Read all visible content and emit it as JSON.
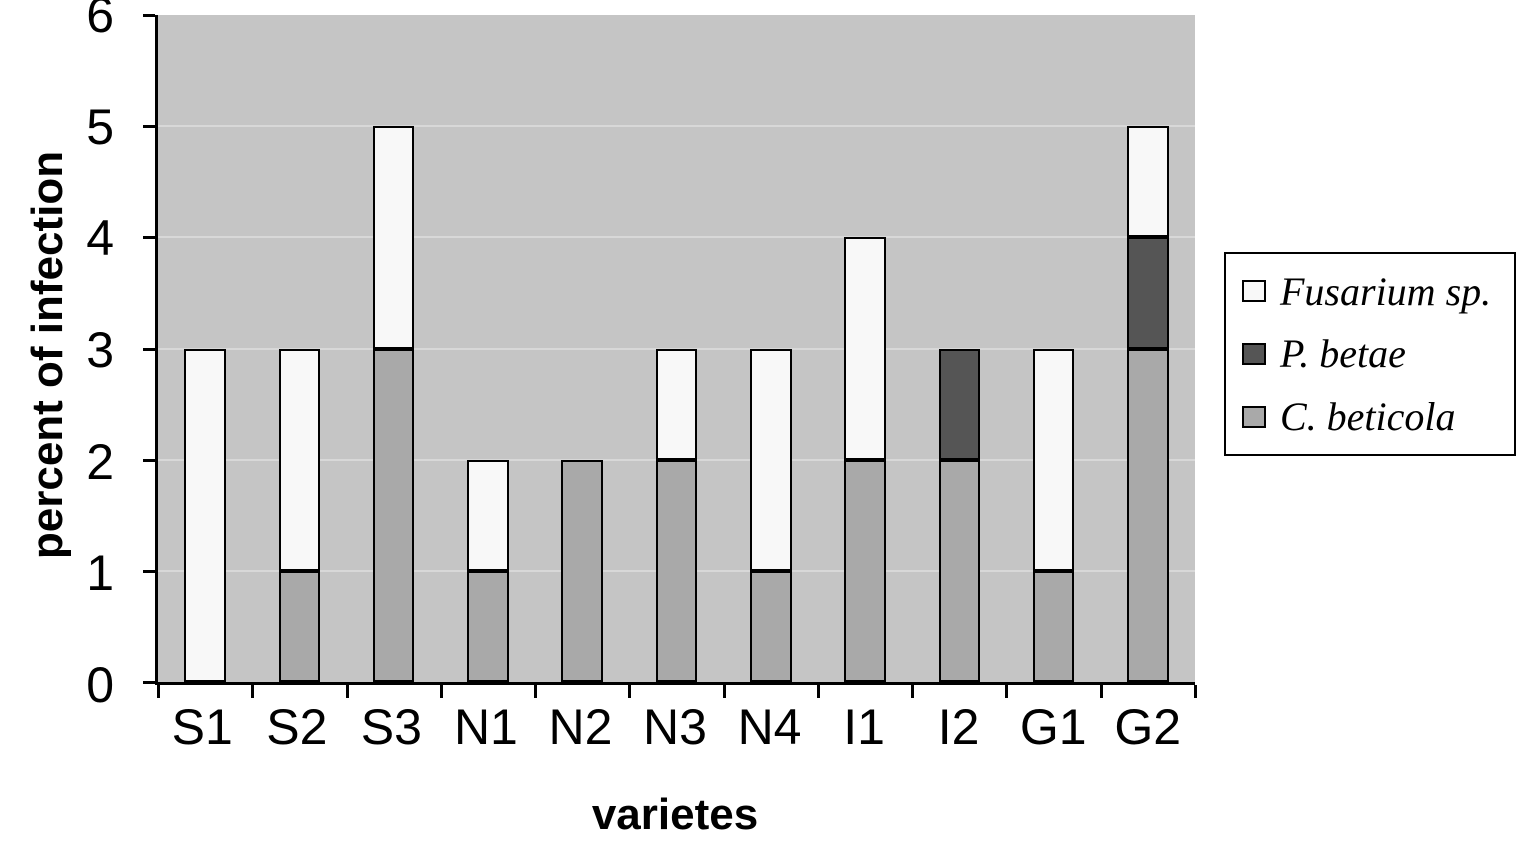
{
  "chart_data": {
    "type": "bar",
    "stacked": true,
    "title": "",
    "xlabel": "varietes",
    "ylabel": "percent of infection",
    "ylim": [
      0,
      6
    ],
    "ytick_step": 1,
    "yticks": [
      0,
      1,
      2,
      3,
      4,
      5,
      6
    ],
    "grid": true,
    "plot_bg": "#c5c5c5",
    "categories": [
      "S1",
      "S2",
      "S3",
      "N1",
      "N2",
      "N3",
      "N4",
      "I1",
      "I2",
      "G1",
      "G2"
    ],
    "series": [
      {
        "name": "C. beticola",
        "color": "#a9a9a9",
        "values": [
          0,
          1,
          3,
          1,
          2,
          2,
          1,
          2,
          2,
          1,
          3
        ]
      },
      {
        "name": "P. betae",
        "color": "#555555",
        "values": [
          0,
          0,
          0,
          0,
          0,
          0,
          0,
          0,
          1,
          0,
          1
        ]
      },
      {
        "name": "Fusarium sp.",
        "color": "#f8f8f8",
        "values": [
          3,
          2,
          2,
          1,
          0,
          1,
          2,
          2,
          0,
          2,
          1
        ]
      }
    ],
    "legend": {
      "position": "right",
      "entries": [
        {
          "label": "Fusarium sp.",
          "color": "#f8f8f8"
        },
        {
          "label": "P. betae",
          "color": "#555555"
        },
        {
          "label": "C. beticola",
          "color": "#a9a9a9"
        }
      ]
    }
  }
}
